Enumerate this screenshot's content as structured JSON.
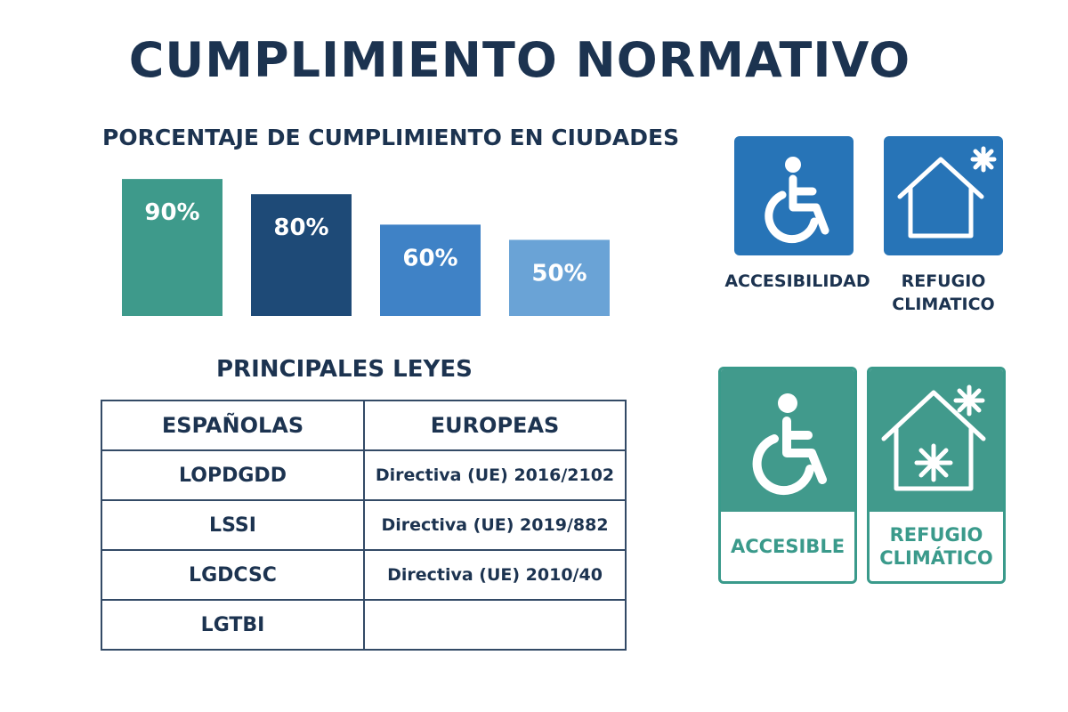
{
  "title": "CUMPLIMIENTO NORMATIVO",
  "chart_data": {
    "type": "bar",
    "title": "PORCENTAJE DE CUMPLIMIENTO EN CIUDADES",
    "categories": [
      "",
      "",
      "",
      ""
    ],
    "values": [
      90,
      80,
      60,
      50
    ],
    "value_labels": [
      "90%",
      "80%",
      "60%",
      "50%"
    ],
    "colors": [
      "#3e9a8b",
      "#1e4a77",
      "#3f82c6",
      "#6aa3d6"
    ],
    "ylim": [
      0,
      100
    ],
    "grid": false,
    "legend": "none"
  },
  "laws": {
    "title": "PRINCIPALES LEYES",
    "headers": [
      "ESPAÑOLAS",
      "EUROPEAS"
    ],
    "rows": [
      [
        "LOPDGDD",
        "Directiva (UE) 2016/2102"
      ],
      [
        "LSSI",
        "Directiva (UE) 2019/882"
      ],
      [
        "LGDCSC",
        "Directiva (UE) 2010/40"
      ],
      [
        "LGTBI",
        ""
      ]
    ]
  },
  "signs_blue": [
    {
      "icon": "wheelchair-icon",
      "label": "ACCESIBILIDAD",
      "color": "#2774b7"
    },
    {
      "icon": "house-snowflake-icon",
      "label": "REFUGIO\nCLIMATICO",
      "color": "#2774b7"
    }
  ],
  "signs_teal": [
    {
      "icon": "wheelchair-icon",
      "label": "ACCESIBLE",
      "color": "#419a8c"
    },
    {
      "icon": "house-snowflake-icon",
      "label": "REFUGIO\nCLIMÁTICO",
      "color": "#419a8c"
    }
  ]
}
